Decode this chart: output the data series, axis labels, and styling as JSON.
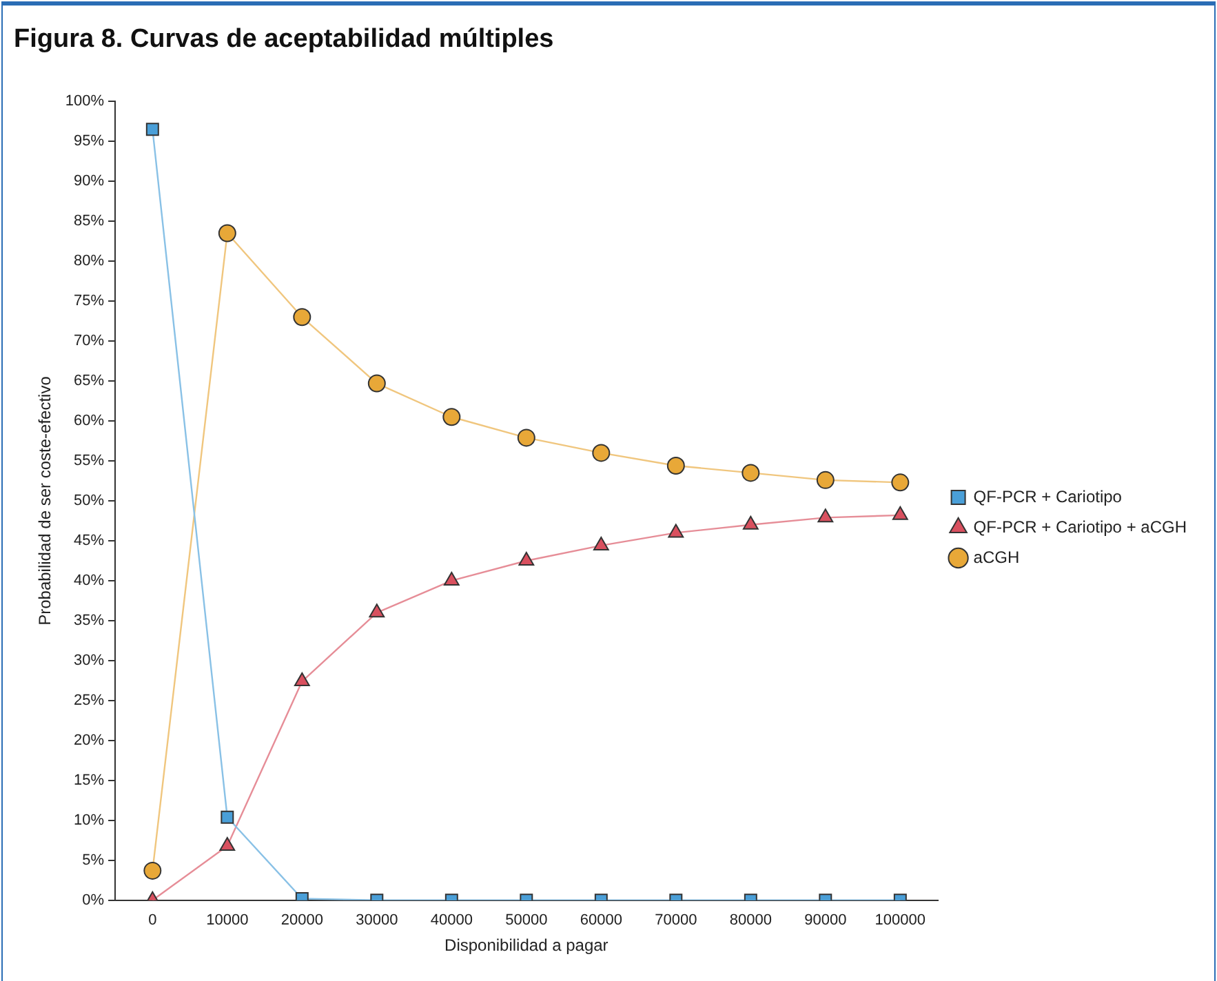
{
  "chart_data": {
    "type": "line",
    "title": "Figura 8. Curvas de aceptabilidad múltiples",
    "xlabel": "Disponibilidad a pagar",
    "ylabel": "Probabilidad de ser coste-efectivo",
    "categories": [
      "0",
      "10000",
      "20000",
      "30000",
      "40000",
      "50000",
      "60000",
      "70000",
      "80000",
      "90000",
      "100000"
    ],
    "series": [
      {
        "name": "QF-PCR + Cariotipo",
        "color": "#4a9fd8",
        "marker": "square",
        "values": [
          96.5,
          10.4,
          0.2,
          0,
          0,
          0,
          0,
          0,
          0,
          0,
          0
        ]
      },
      {
        "name": "QF-PCR + Cariotipo + aCGH",
        "color": "#d9505f",
        "marker": "triangle",
        "values": [
          0,
          6.8,
          27.4,
          36,
          40,
          42.5,
          44.4,
          46,
          47,
          47.9,
          48.2
        ]
      },
      {
        "name": "aCGH",
        "color": "#e8a838",
        "marker": "circle",
        "values": [
          3.7,
          83.5,
          73,
          64.7,
          60.5,
          57.9,
          56,
          54.4,
          53.5,
          52.6,
          52.3
        ]
      }
    ],
    "ylim": [
      0,
      100
    ],
    "yticks": [
      {
        "value": 0,
        "label": "0%"
      },
      {
        "value": 5,
        "label": "5%"
      },
      {
        "value": 10,
        "label": "10%"
      },
      {
        "value": 15,
        "label": "15%"
      },
      {
        "value": 20,
        "label": "20%"
      },
      {
        "value": 25,
        "label": "25%"
      },
      {
        "value": 30,
        "label": "30%"
      },
      {
        "value": 35,
        "label": "35%"
      },
      {
        "value": 40,
        "label": "40%"
      },
      {
        "value": 45,
        "label": "45%"
      },
      {
        "value": 50,
        "label": "50%"
      },
      {
        "value": 55,
        "label": "55%"
      },
      {
        "value": 60,
        "label": "60%"
      },
      {
        "value": 65,
        "label": "65%"
      },
      {
        "value": 70,
        "label": "70%"
      },
      {
        "value": 75,
        "label": "75%"
      },
      {
        "value": 80,
        "label": "80%"
      },
      {
        "value": 85,
        "label": "85%"
      },
      {
        "value": 90,
        "label": "90%"
      },
      {
        "value": 95,
        "label": "95%"
      },
      {
        "value": 100,
        "label": "100%"
      }
    ],
    "grid": false,
    "legend": "right",
    "line_style": "solid"
  }
}
